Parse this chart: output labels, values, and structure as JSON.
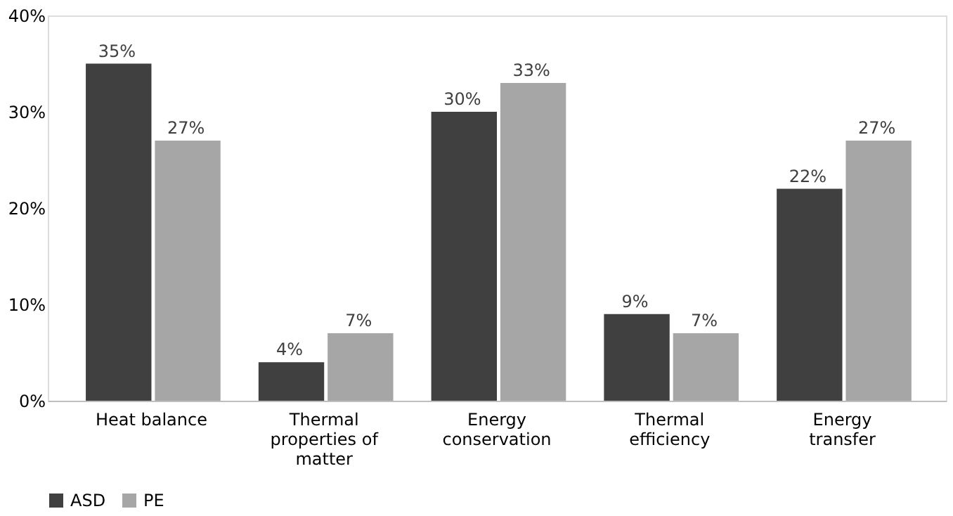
{
  "chart_data": {
    "type": "bar",
    "categories": [
      "Heat balance",
      "Thermal properties of matter",
      "Energy conservation",
      "Thermal efficiency",
      "Energy transfer"
    ],
    "series": [
      {
        "name": "ASD",
        "color": "#404040",
        "values": [
          35,
          4,
          30,
          9,
          22
        ],
        "value_labels": [
          "35%",
          "4%",
          "30%",
          "9%",
          "22%"
        ]
      },
      {
        "name": "PE",
        "color": "#a6a6a6",
        "values": [
          27,
          7,
          33,
          7,
          27
        ],
        "value_labels": [
          "27%",
          "7%",
          "33%",
          "7%",
          "27%"
        ]
      }
    ],
    "ylim": [
      0,
      40
    ],
    "yticks": [
      {
        "value": 0,
        "label": "0%"
      },
      {
        "value": 10,
        "label": "10%"
      },
      {
        "value": 20,
        "label": "20%"
      },
      {
        "value": 30,
        "label": "30%"
      },
      {
        "value": 40,
        "label": "40%"
      }
    ],
    "grid": false,
    "legend": "bottom"
  }
}
